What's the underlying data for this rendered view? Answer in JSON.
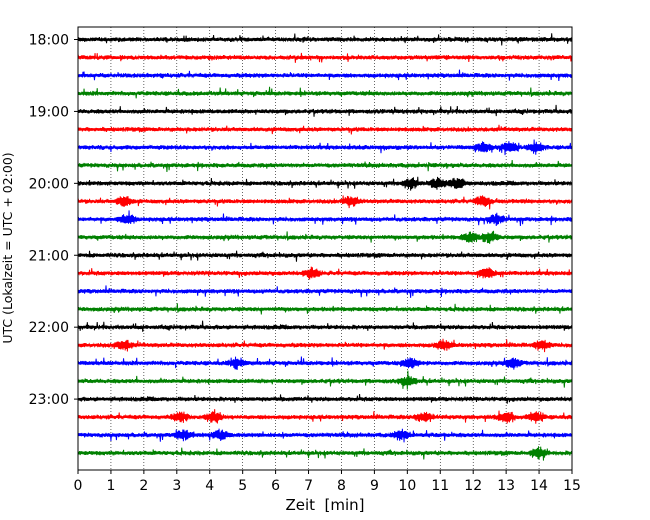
{
  "chart_data": {
    "type": "line",
    "title": "",
    "xlabel": "Zeit  [min]",
    "ylabel": "UTC (Lokalzeit = UTC + 02:00)",
    "xlim": [
      0,
      15
    ],
    "x_ticks": [
      "0",
      "1",
      "2",
      "3",
      "4",
      "5",
      "6",
      "7",
      "8",
      "9",
      "10",
      "11",
      "12",
      "13",
      "14",
      "15"
    ],
    "y_tick_labels": [
      "18:00",
      "19:00",
      "20:00",
      "21:00",
      "22:00",
      "23:00"
    ],
    "y_tick_trace_index": [
      0,
      4,
      8,
      12,
      16,
      20
    ],
    "grid": "vertical dotted at each minute",
    "legend": "none",
    "trace_interval_minutes": 15,
    "trace_start": "18:00",
    "trace_count": 24,
    "color_cycle": [
      "#000000",
      "#ff0000",
      "#0000ff",
      "#008000"
    ],
    "notable_events": [
      {
        "trace": 6,
        "minutes": [
          12.3,
          13.1,
          13.9
        ]
      },
      {
        "trace": 8,
        "minutes": [
          10.1,
          10.9,
          11.5
        ]
      },
      {
        "trace": 9,
        "minutes": [
          1.4,
          8.3,
          12.3
        ]
      },
      {
        "trace": 10,
        "minutes": [
          1.5,
          12.7
        ]
      },
      {
        "trace": 11,
        "minutes": [
          11.9,
          12.5
        ]
      },
      {
        "trace": 13,
        "minutes": [
          7.1,
          12.4
        ]
      },
      {
        "trace": 17,
        "minutes": [
          1.4,
          11.1,
          14.1
        ]
      },
      {
        "trace": 18,
        "minutes": [
          4.8,
          10.1,
          13.2
        ]
      },
      {
        "trace": 19,
        "minutes": [
          10.0
        ]
      },
      {
        "trace": 21,
        "minutes": [
          3.1,
          4.1,
          10.5,
          13.0,
          13.9
        ]
      },
      {
        "trace": 22,
        "minutes": [
          3.2,
          4.3,
          9.8
        ]
      },
      {
        "trace": 23,
        "minutes": [
          14.0
        ]
      }
    ]
  }
}
